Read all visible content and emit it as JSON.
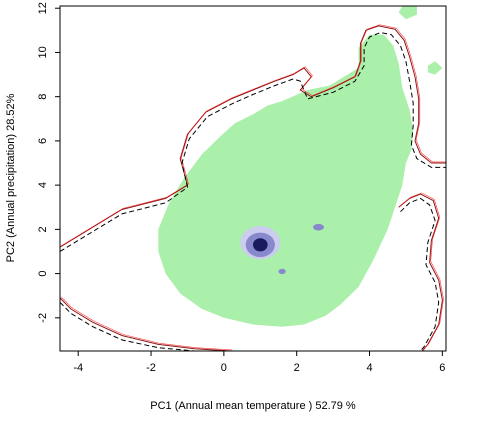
{
  "chart_data": {
    "type": "scatter",
    "title": "",
    "xlabel": "PC1 (Annual mean temperature ) 52.79 %",
    "ylabel": "PC2 (Annual precipitation) 28.52%",
    "xlim": [
      -4.5,
      6.1
    ],
    "ylim": [
      -3.5,
      12.1
    ],
    "xticks": [
      -4,
      -2,
      0,
      2,
      4,
      6
    ],
    "yticks": [
      -2,
      0,
      2,
      4,
      6,
      8,
      10,
      12
    ],
    "grid": false,
    "legend": "none",
    "colors": {
      "environment_fill": "#aaf0aa",
      "density_low": "#ccccee",
      "density_mid": "#8888cc",
      "density_high": "#1a1a5e",
      "contour_solid": "#8b1a1a",
      "contour_dashed": "#000000",
      "contour_red": "#ff0000",
      "contour_orange": "#e6a020"
    },
    "layers": [
      {
        "kind": "filled_region",
        "color_key": "environment_fill",
        "outline": [
          [
            -1.8,
            2
          ],
          [
            -1.8,
            1
          ],
          [
            -1.6,
            0
          ],
          [
            -1.2,
            -0.9
          ],
          [
            -0.6,
            -1.6
          ],
          [
            0,
            -2
          ],
          [
            0.8,
            -2.3
          ],
          [
            1.6,
            -2.4
          ],
          [
            2.2,
            -2.3
          ],
          [
            2.8,
            -1.9
          ],
          [
            3.2,
            -1.4
          ],
          [
            3.7,
            -0.6
          ],
          [
            4.1,
            0.6
          ],
          [
            4.5,
            2
          ],
          [
            4.7,
            3
          ],
          [
            4.9,
            4
          ],
          [
            5.0,
            5
          ],
          [
            5.15,
            5.6
          ],
          [
            5.2,
            6.4
          ],
          [
            5.1,
            7.4
          ],
          [
            4.9,
            8.4
          ],
          [
            4.8,
            9.5
          ],
          [
            4.65,
            10.3
          ],
          [
            4.4,
            10.8
          ],
          [
            4.0,
            10.8
          ],
          [
            3.7,
            10.2
          ],
          [
            3.7,
            9.3
          ],
          [
            3.3,
            8.9
          ],
          [
            2.9,
            8.5
          ],
          [
            2.3,
            8.3
          ],
          [
            1.6,
            7.8
          ],
          [
            1.2,
            7.6
          ],
          [
            0.8,
            7.2
          ],
          [
            0.3,
            6.8
          ],
          [
            -0.1,
            6.2
          ],
          [
            -0.6,
            5.4
          ],
          [
            -1.1,
            4.3
          ],
          [
            -1.5,
            3.2
          ],
          [
            -1.8,
            2
          ]
        ]
      },
      {
        "kind": "filled_region",
        "color_key": "environment_fill",
        "outline": [
          [
            4.8,
            11.8
          ],
          [
            4.9,
            12.1
          ],
          [
            5.3,
            12.1
          ],
          [
            5.3,
            11.7
          ],
          [
            5.0,
            11.5
          ]
        ]
      },
      {
        "kind": "filled_region",
        "color_key": "environment_fill",
        "outline": [
          [
            5.6,
            9.4
          ],
          [
            5.8,
            9.6
          ],
          [
            6.0,
            9.3
          ],
          [
            5.8,
            9.0
          ],
          [
            5.6,
            9.1
          ]
        ]
      },
      {
        "kind": "density_patches",
        "patches": [
          {
            "x": 1.0,
            "y": 1.4,
            "rx": 0.55,
            "ry": 0.75,
            "color_key": "density_low"
          },
          {
            "x": 1.0,
            "y": 1.3,
            "rx": 0.4,
            "ry": 0.55,
            "color_key": "density_mid"
          },
          {
            "x": 1.0,
            "y": 1.3,
            "rx": 0.2,
            "ry": 0.3,
            "color_key": "density_high"
          },
          {
            "x": 2.6,
            "y": 2.1,
            "rx": 0.15,
            "ry": 0.15,
            "color_key": "density_mid"
          },
          {
            "x": 1.6,
            "y": 0.1,
            "rx": 0.1,
            "ry": 0.12,
            "color_key": "density_mid"
          }
        ]
      },
      {
        "kind": "contour_lines",
        "lines": [
          {
            "style": "solid",
            "color_key": "contour_solid",
            "points": [
              [
                -4.5,
                1.2
              ],
              [
                -3.8,
                1.9
              ],
              [
                -2.8,
                2.9
              ],
              [
                -1.6,
                3.4
              ],
              [
                -1.0,
                4.0
              ],
              [
                -1.2,
                5.2
              ],
              [
                -1.0,
                6.3
              ],
              [
                -0.5,
                7.3
              ],
              [
                0.2,
                7.9
              ],
              [
                0.8,
                8.3
              ],
              [
                1.4,
                8.7
              ],
              [
                1.9,
                9.0
              ],
              [
                2.2,
                9.3
              ],
              [
                2.4,
                8.9
              ],
              [
                2.1,
                8.3
              ],
              [
                2.4,
                8.0
              ],
              [
                3.0,
                8.4
              ],
              [
                3.6,
                8.9
              ],
              [
                3.75,
                9.6
              ],
              [
                3.75,
                10.4
              ],
              [
                3.9,
                11.0
              ],
              [
                4.25,
                11.2
              ],
              [
                4.7,
                11.05
              ],
              [
                4.95,
                10.55
              ],
              [
                5.1,
                9.8
              ],
              [
                5.25,
                8.9
              ],
              [
                5.35,
                7.9
              ],
              [
                5.35,
                6.8
              ],
              [
                5.25,
                6.0
              ],
              [
                5.4,
                5.4
              ],
              [
                5.7,
                5.0
              ],
              [
                6.1,
                5.0
              ]
            ]
          },
          {
            "style": "dashed",
            "color_key": "contour_dashed",
            "points": [
              [
                -4.5,
                1.0
              ],
              [
                -3.8,
                1.7
              ],
              [
                -2.8,
                2.7
              ],
              [
                -1.6,
                3.2
              ],
              [
                -1.0,
                3.9
              ],
              [
                -1.15,
                5.0
              ],
              [
                -0.95,
                6.1
              ],
              [
                -0.45,
                7.1
              ],
              [
                0.25,
                7.7
              ],
              [
                0.8,
                8.1
              ],
              [
                1.4,
                8.5
              ],
              [
                1.9,
                8.8
              ],
              [
                2.1,
                8.7
              ],
              [
                2.3,
                7.9
              ],
              [
                3.0,
                8.2
              ],
              [
                3.6,
                8.7
              ],
              [
                3.85,
                9.4
              ],
              [
                3.85,
                10.2
              ],
              [
                4.0,
                10.7
              ],
              [
                4.3,
                10.9
              ],
              [
                4.6,
                10.8
              ],
              [
                4.85,
                10.3
              ],
              [
                5.0,
                9.6
              ],
              [
                5.1,
                8.7
              ],
              [
                5.2,
                7.7
              ],
              [
                5.2,
                6.7
              ],
              [
                5.15,
                5.8
              ],
              [
                5.3,
                5.2
              ],
              [
                5.7,
                4.8
              ],
              [
                6.1,
                4.8
              ]
            ]
          },
          {
            "style": "solid",
            "color_key": "contour_solid",
            "points": [
              [
                -4.5,
                -1.1
              ],
              [
                -4.2,
                -1.6
              ],
              [
                -3.6,
                -2.2
              ],
              [
                -2.8,
                -2.8
              ],
              [
                -1.8,
                -3.2
              ],
              [
                -0.8,
                -3.4
              ],
              [
                0.2,
                -3.5
              ]
            ]
          },
          {
            "style": "dashed",
            "color_key": "contour_dashed",
            "points": [
              [
                -4.5,
                -1.3
              ],
              [
                -4.2,
                -1.8
              ],
              [
                -3.6,
                -2.4
              ],
              [
                -2.8,
                -3.0
              ],
              [
                -1.8,
                -3.35
              ],
              [
                -0.8,
                -3.5
              ]
            ]
          },
          {
            "style": "solid",
            "color_key": "contour_solid",
            "points": [
              [
                4.8,
                3.0
              ],
              [
                5.1,
                3.4
              ],
              [
                5.4,
                3.6
              ],
              [
                5.75,
                3.3
              ],
              [
                5.9,
                2.5
              ],
              [
                5.7,
                1.5
              ],
              [
                5.65,
                0.5
              ],
              [
                5.9,
                -0.3
              ],
              [
                6.0,
                -1.2
              ],
              [
                5.9,
                -2.3
              ],
              [
                5.6,
                -3.2
              ],
              [
                5.45,
                -3.5
              ]
            ]
          },
          {
            "style": "dashed",
            "color_key": "contour_dashed",
            "points": [
              [
                4.85,
                2.8
              ],
              [
                5.1,
                3.2
              ],
              [
                5.4,
                3.4
              ],
              [
                5.65,
                3.1
              ],
              [
                5.8,
                2.4
              ],
              [
                5.6,
                1.4
              ],
              [
                5.55,
                0.4
              ],
              [
                5.8,
                -0.4
              ],
              [
                5.9,
                -1.3
              ],
              [
                5.8,
                -2.4
              ],
              [
                5.5,
                -3.3
              ],
              [
                5.4,
                -3.5
              ]
            ]
          }
        ]
      }
    ]
  }
}
